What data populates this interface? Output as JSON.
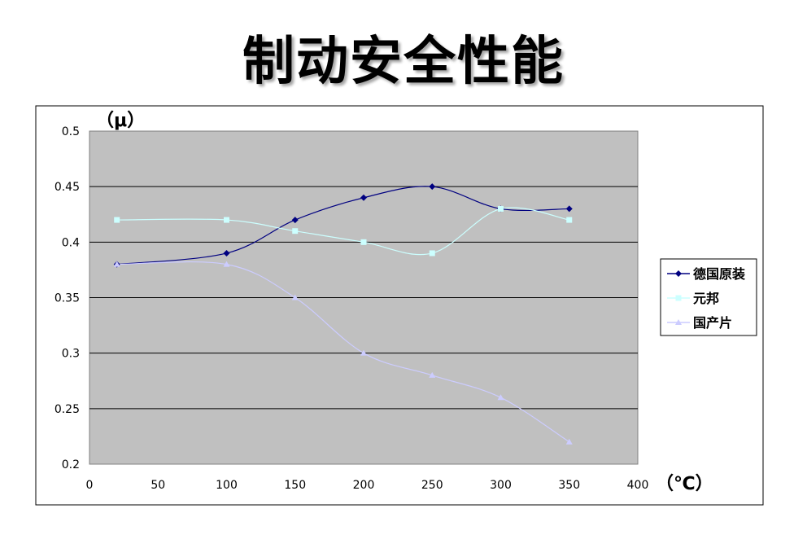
{
  "title": "制动安全性能",
  "chart_data": {
    "type": "line",
    "title": "制动安全性能",
    "xlabel": "（℃）",
    "ylabel": "（μ）",
    "xlim": [
      0,
      400
    ],
    "ylim": [
      0.2,
      0.5
    ],
    "x_ticks": [
      "0",
      "50",
      "100",
      "150",
      "200",
      "250",
      "300",
      "350",
      "400"
    ],
    "y_ticks": [
      "0.2",
      "0.25",
      "0.3",
      "0.35",
      "0.4",
      "0.45",
      "0.5"
    ],
    "grid": "horizontal",
    "legend_position": "right",
    "plot_background": "#c0c0c0",
    "series": [
      {
        "name": "德国原装",
        "color": "#000080",
        "marker": "diamond",
        "x": [
          20,
          100,
          150,
          200,
          250,
          300,
          350
        ],
        "y": [
          0.38,
          0.39,
          0.42,
          0.44,
          0.45,
          0.43,
          0.43
        ]
      },
      {
        "name": "元邦",
        "color": "#ccffff",
        "marker": "square",
        "x": [
          20,
          100,
          150,
          200,
          250,
          300,
          350
        ],
        "y": [
          0.42,
          0.42,
          0.41,
          0.4,
          0.39,
          0.43,
          0.42
        ]
      },
      {
        "name": "国产片",
        "color": "#ccccff",
        "marker": "triangle",
        "x": [
          20,
          100,
          150,
          200,
          250,
          300,
          350
        ],
        "y": [
          0.38,
          0.38,
          0.35,
          0.3,
          0.28,
          0.26,
          0.22
        ]
      }
    ]
  }
}
